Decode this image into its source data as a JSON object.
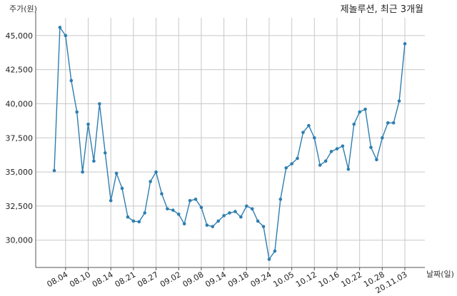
{
  "chart_data": {
    "type": "line",
    "title": "제놀루션, 최근 3개월",
    "ylabel": "주가(원)",
    "xlabel": "날짜(일)",
    "ylim": [
      28000,
      46300
    ],
    "yticks": [
      30000,
      32500,
      35000,
      37500,
      40000,
      42500,
      45000
    ],
    "ytick_labels": [
      "30,000",
      "32,500",
      "35,000",
      "37,500",
      "40,000",
      "42,500",
      "45,000"
    ],
    "xtick_positions": [
      2,
      6,
      10,
      14,
      18,
      22,
      26,
      30,
      34,
      38,
      42,
      46,
      50,
      54,
      58,
      62
    ],
    "xtick_labels": [
      "08.04",
      "08.10",
      "08.14",
      "08.21",
      "08.27",
      "09.02",
      "09.08",
      "09.14",
      "09.18",
      "09.24",
      "10.05",
      "10.12",
      "10.16",
      "10.22",
      "10.28",
      "20.11.03"
    ],
    "grid": true,
    "color": "#2e7eb0",
    "series": [
      {
        "values": [
          35100,
          45600,
          45000,
          41700,
          39400,
          35000,
          38500,
          35800,
          40000,
          36400,
          32900,
          34900,
          33800,
          31700,
          31400,
          31350,
          32000,
          34300,
          35000,
          33400,
          32300,
          32200,
          31900,
          31200,
          32900,
          33000,
          32400,
          31100,
          31000,
          31400,
          31800,
          32000,
          32100,
          31700,
          32500,
          32300,
          31400,
          31000,
          28600,
          29200,
          33000,
          35300,
          35600,
          36000,
          37900,
          38400,
          37500,
          35500,
          35800,
          36500,
          36700,
          36900,
          35200,
          38500,
          39400,
          39600,
          36800,
          35900,
          37500,
          38600,
          38600,
          40200,
          44400
        ]
      }
    ]
  }
}
